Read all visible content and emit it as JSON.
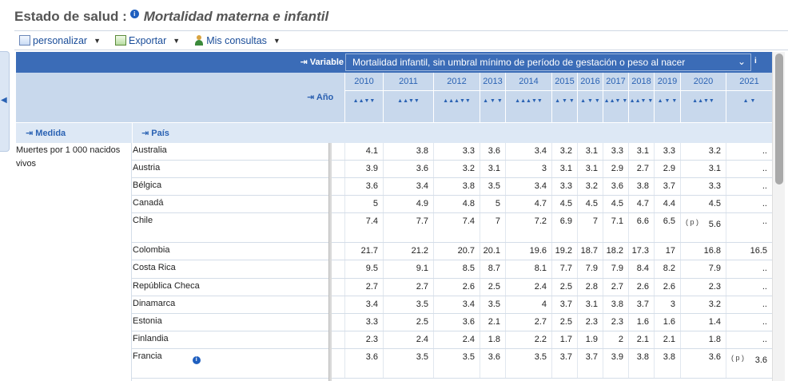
{
  "page": {
    "title_prefix": "Estado de salud :",
    "title_subject": "Mortalidad materna e infantil"
  },
  "toolbar": {
    "customize_label": "personalizar",
    "export_label": "Exportar",
    "queries_label": "Mis consultas"
  },
  "header": {
    "variable_label": "Variable",
    "variable_value": "Mortalidad infantil, sin umbral mínimo de período de gestación o peso al nacer",
    "year_label": "Año",
    "measure_label": "Medida",
    "country_label": "País",
    "years": [
      "2010",
      "2011",
      "2012",
      "2013",
      "2014",
      "2015",
      "2016",
      "2017",
      "2018",
      "2019",
      "2020",
      "2021"
    ]
  },
  "measure": "Muertes por 1 000 nacidos vivos",
  "rows": [
    {
      "country": "Australia",
      "values": [
        "4.1",
        "3.8",
        "3.3",
        "3.6",
        "3.4",
        "3.2",
        "3.1",
        "3.3",
        "3.1",
        "3.3",
        "3.2",
        ".."
      ]
    },
    {
      "country": "Austria",
      "values": [
        "3.9",
        "3.6",
        "3.2",
        "3.1",
        "3",
        "3.1",
        "3.1",
        "2.9",
        "2.7",
        "2.9",
        "3.1",
        ".."
      ]
    },
    {
      "country": "Bélgica",
      "values": [
        "3.6",
        "3.4",
        "3.8",
        "3.5",
        "3.4",
        "3.3",
        "3.2",
        "3.6",
        "3.8",
        "3.7",
        "3.3",
        ".."
      ]
    },
    {
      "country": "Canadá",
      "values": [
        "5",
        "4.9",
        "4.8",
        "5",
        "4.7",
        "4.5",
        "4.5",
        "4.5",
        "4.7",
        "4.4",
        "4.5",
        ".."
      ]
    },
    {
      "country": "Chile",
      "values": [
        "7.4",
        "7.7",
        "7.4",
        "7",
        "7.2",
        "6.9",
        "7",
        "7.1",
        "6.6",
        "6.5",
        "5.6",
        ".."
      ],
      "flag_col": 10,
      "flag": "( p )"
    },
    {
      "country": "Colombia",
      "values": [
        "21.7",
        "21.2",
        "20.7",
        "20.1",
        "19.6",
        "19.2",
        "18.7",
        "18.2",
        "17.3",
        "17",
        "16.8",
        "16.5"
      ]
    },
    {
      "country": "Costa Rica",
      "values": [
        "9.5",
        "9.1",
        "8.5",
        "8.7",
        "8.1",
        "7.7",
        "7.9",
        "7.9",
        "8.4",
        "8.2",
        "7.9",
        ".."
      ]
    },
    {
      "country": "República Checa",
      "values": [
        "2.7",
        "2.7",
        "2.6",
        "2.5",
        "2.4",
        "2.5",
        "2.8",
        "2.7",
        "2.6",
        "2.6",
        "2.3",
        ".."
      ]
    },
    {
      "country": "Dinamarca",
      "values": [
        "3.4",
        "3.5",
        "3.4",
        "3.5",
        "4",
        "3.7",
        "3.1",
        "3.8",
        "3.7",
        "3",
        "3.2",
        ".."
      ]
    },
    {
      "country": "Estonia",
      "values": [
        "3.3",
        "2.5",
        "3.6",
        "2.1",
        "2.7",
        "2.5",
        "2.3",
        "2.3",
        "1.6",
        "1.6",
        "1.4",
        ".."
      ]
    },
    {
      "country": "Finlandia",
      "values": [
        "2.3",
        "2.4",
        "2.4",
        "1.8",
        "2.2",
        "1.7",
        "1.9",
        "2",
        "2.1",
        "2.1",
        "1.8",
        ".."
      ]
    },
    {
      "country": "Francia",
      "values": [
        "3.6",
        "3.5",
        "3.5",
        "3.6",
        "3.5",
        "3.7",
        "3.7",
        "3.9",
        "3.8",
        "3.8",
        "3.6",
        "3.6"
      ],
      "flag_col": 11,
      "flag": "( p )",
      "info": true
    }
  ]
}
